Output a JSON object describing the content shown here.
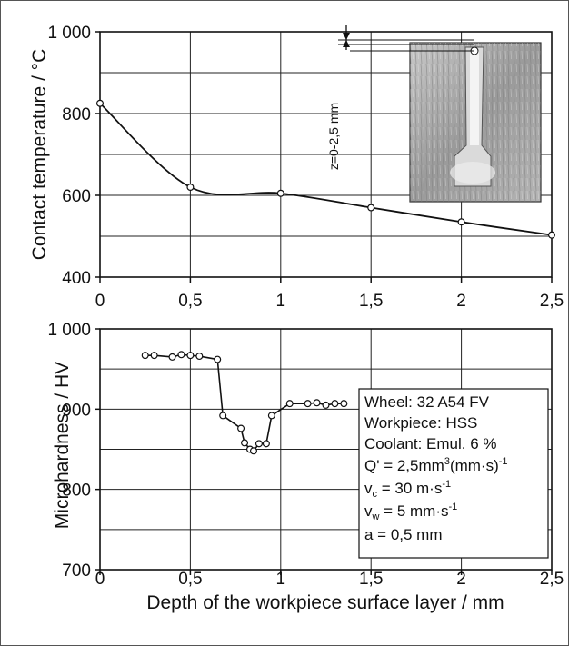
{
  "chart_data": [
    {
      "type": "line",
      "ylabel": "Contact temperature / °C",
      "xlim": [
        0,
        2.5
      ],
      "ylim": [
        400,
        1000
      ],
      "x_ticks": [
        "0",
        "0,5",
        "1",
        "1,5",
        "2",
        "2,5"
      ],
      "y_ticks": [
        "400",
        "600",
        "800",
        "1 000"
      ],
      "grid": true,
      "series": [
        {
          "points": [
            [
              0,
              825
            ],
            [
              0.5,
              620
            ],
            [
              1,
              605
            ],
            [
              1.5,
              570
            ],
            [
              2,
              535
            ],
            [
              2.5,
              503
            ]
          ]
        }
      ],
      "inset": {
        "description_label": "z=0-2,5 mm"
      }
    },
    {
      "type": "line",
      "xlabel": "Depth of the workpiece surface layer / mm",
      "ylabel": "Microhardness / HV",
      "xlim": [
        0,
        2.5
      ],
      "ylim": [
        700,
        1000
      ],
      "x_ticks": [
        "0",
        "0,5",
        "1",
        "1,5",
        "2",
        "2,5"
      ],
      "y_ticks": [
        "700",
        "800",
        "900",
        "1 000"
      ],
      "grid": true,
      "series": [
        {
          "points": [
            [
              0.25,
              967
            ],
            [
              0.3,
              967
            ],
            [
              0.4,
              965
            ],
            [
              0.45,
              968
            ],
            [
              0.5,
              967
            ],
            [
              0.55,
              966
            ],
            [
              0.65,
              962
            ],
            [
              0.68,
              892
            ],
            [
              0.78,
              876
            ],
            [
              0.8,
              858
            ],
            [
              0.83,
              850
            ],
            [
              0.85,
              848
            ],
            [
              0.88,
              857
            ],
            [
              0.92,
              857
            ],
            [
              0.95,
              892
            ],
            [
              1.05,
              907
            ],
            [
              1.15,
              907
            ],
            [
              1.2,
              908
            ],
            [
              1.25,
              905
            ],
            [
              1.3,
              907
            ],
            [
              1.35,
              907
            ]
          ]
        }
      ],
      "legend": {
        "placement": "right",
        "lines": [
          "Wheel: 32 A54 FV",
          "Workpiece: HSS",
          "Coolant: Emul. 6 %"
        ],
        "q_prefix": "Q' = 2,5mm",
        "q_sup1": "3",
        "q_mid": "(mm·s)",
        "q_sup2": "-1",
        "vc_prefix": "v",
        "vc_sub": "c",
        "vc_mid": " = 30 m·s",
        "vc_sup": "-1",
        "vw_prefix": "v",
        "vw_sub": "w",
        "vw_mid": " = 5 mm·s",
        "vw_sup": "-1",
        "a_line": "a  = 0,5 mm"
      }
    }
  ],
  "colors": {
    "line": "#111111",
    "grid": "#222222",
    "marker_fill": "#ffffff",
    "inset_bg": "#a9a9a9"
  }
}
